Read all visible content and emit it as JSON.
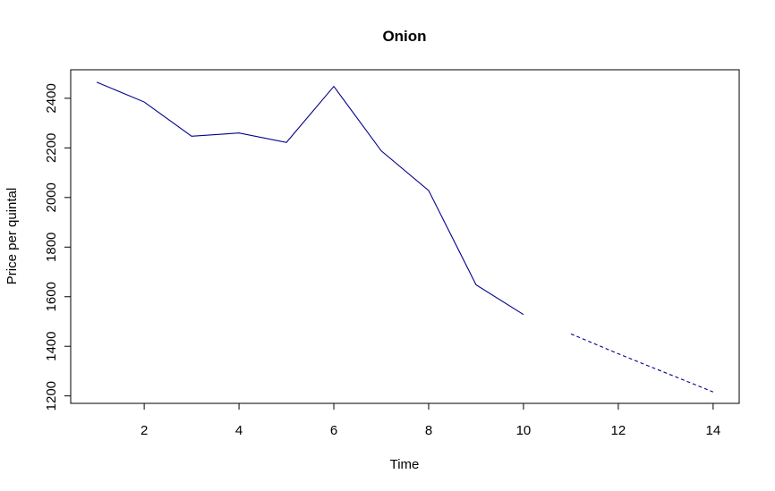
{
  "chart_data": {
    "type": "line",
    "title": "Onion",
    "xlabel": "Time",
    "ylabel": "Price per quintal",
    "xlim": [
      0.45,
      14.55
    ],
    "ylim": [
      1170,
      2515
    ],
    "xticks": [
      2,
      4,
      6,
      8,
      10,
      12,
      14
    ],
    "yticks": [
      1200,
      1400,
      1600,
      1800,
      2000,
      2200,
      2400
    ],
    "grid": false,
    "series": [
      {
        "style": "solid",
        "color": "#00008b",
        "x": [
          1,
          2,
          3,
          4,
          5,
          6,
          7,
          8,
          9,
          10
        ],
        "y": [
          2465,
          2385,
          2247,
          2260,
          2222,
          2448,
          2188,
          2028,
          1648,
          1528
        ]
      },
      {
        "style": "dashed",
        "color": "#00008b",
        "x": [
          11,
          12,
          13,
          14
        ],
        "y": [
          1450,
          1370,
          1293,
          1216
        ]
      }
    ]
  }
}
